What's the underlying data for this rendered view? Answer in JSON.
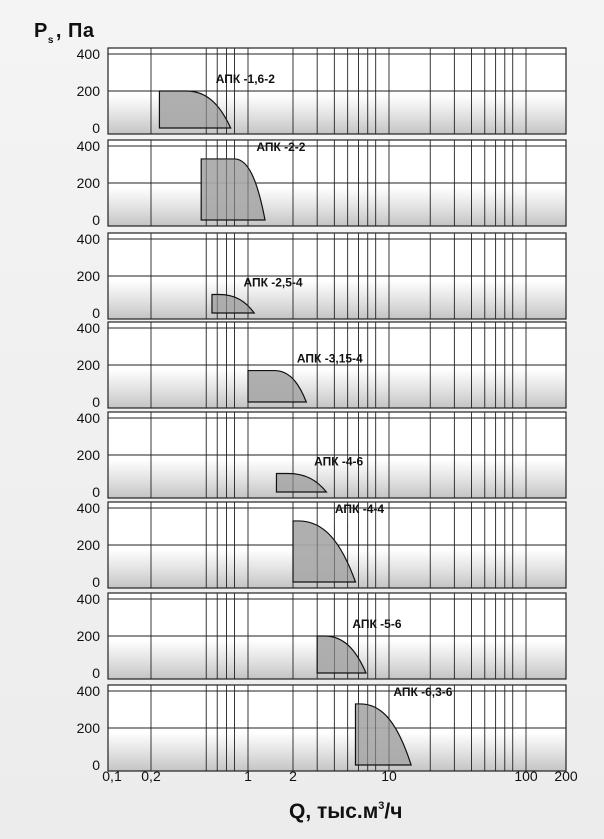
{
  "axis": {
    "y_symbol": "P",
    "y_sub": "s",
    "y_unit": ", Па",
    "x_text_main": "Q, тыс.м",
    "x_sup": "3",
    "x_text_end": "/ч",
    "x_tick_labels": [
      "0,1",
      "0,2",
      "1",
      "2",
      "10",
      "100",
      "200"
    ],
    "y_tick_labels": [
      "400",
      "200",
      "0"
    ]
  },
  "chart_data": [
    {
      "type": "area",
      "series": [
        {
          "name": "АПК -1,6-2",
          "q_range": [
            0.23,
            0.75
          ],
          "p_max": 200,
          "knee_q": 0.36
        }
      ],
      "ylim": [
        0,
        400
      ],
      "xlim": [
        0.1,
        200
      ],
      "xscale": "log",
      "grid": true,
      "label": "АПК -1,6-2"
    },
    {
      "type": "area",
      "series": [
        {
          "name": "АПК -2-2",
          "q_range": [
            0.46,
            1.3
          ],
          "p_max": 330,
          "knee_q": 0.8
        }
      ],
      "ylim": [
        0,
        400
      ],
      "xlim": [
        0.1,
        200
      ],
      "xscale": "log",
      "grid": true,
      "label": "АПК -2-2"
    },
    {
      "type": "area",
      "series": [
        {
          "name": "АПК -2,5-4",
          "q_range": [
            0.55,
            1.1
          ],
          "p_max": 100,
          "knee_q": 0.62
        }
      ],
      "ylim": [
        0,
        400
      ],
      "xlim": [
        0.1,
        200
      ],
      "xscale": "log",
      "grid": true,
      "label": "АПК -2,5-4"
    },
    {
      "type": "area",
      "series": [
        {
          "name": "АПК -3,15-4",
          "q_range": [
            1.0,
            2.5
          ],
          "p_max": 170,
          "knee_q": 1.5
        }
      ],
      "ylim": [
        0,
        400
      ],
      "xlim": [
        0.1,
        200
      ],
      "xscale": "log",
      "grid": true,
      "label": "АПК -3,15-4"
    },
    {
      "type": "area",
      "series": [
        {
          "name": "АПК -4-6",
          "q_range": [
            1.55,
            3.5
          ],
          "p_max": 100,
          "knee_q": 1.85
        }
      ],
      "ylim": [
        0,
        400
      ],
      "xlim": [
        0.1,
        200
      ],
      "xscale": "log",
      "grid": true,
      "label": "АПК -4-6"
    },
    {
      "type": "area",
      "series": [
        {
          "name": "АПК -4-4",
          "q_range": [
            2.0,
            5.7
          ],
          "p_max": 330,
          "knee_q": 2.2
        }
      ],
      "ylim": [
        0,
        400
      ],
      "xlim": [
        0.1,
        200
      ],
      "xscale": "log",
      "grid": true,
      "label": "АПК -4-4"
    },
    {
      "type": "area",
      "series": [
        {
          "name": "АПК -5-6",
          "q_range": [
            3.0,
            6.8
          ],
          "p_max": 200,
          "knee_q": 3.4
        }
      ],
      "ylim": [
        0,
        400
      ],
      "xlim": [
        0.1,
        200
      ],
      "xscale": "log",
      "grid": true,
      "label": "АПК -5-6"
    },
    {
      "type": "area",
      "series": [
        {
          "name": "АПК -6,3-6",
          "q_range": [
            5.7,
            14.5
          ],
          "p_max": 330,
          "knee_q": 6.2
        }
      ],
      "ylim": [
        0,
        400
      ],
      "xlim": [
        0.1,
        200
      ],
      "xscale": "log",
      "grid": true,
      "label": "АПК -6,3-6"
    }
  ],
  "colors": {
    "fill": "#a8a8a8",
    "stroke": "#111111",
    "grid": "#222222",
    "panel_top": "#ffffff",
    "panel_bottom": "#c8c8c8"
  }
}
